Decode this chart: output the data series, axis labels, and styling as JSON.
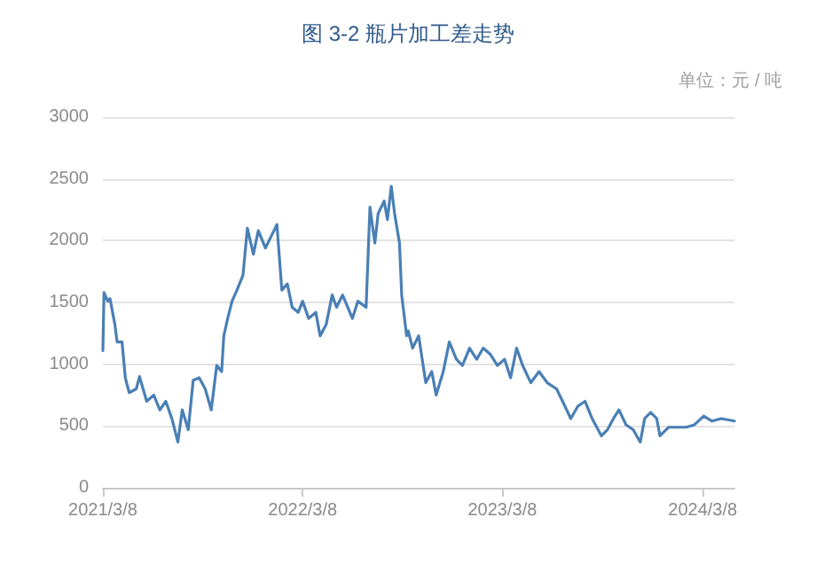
{
  "chart_data": {
    "type": "line",
    "title": "图 3-2 瓶片加工差走势",
    "ylabel": "单位：元 / 吨",
    "x": [
      "2021-03-08",
      "2021-03-10",
      "2021-03-17",
      "2021-03-21",
      "2021-03-30",
      "2021-04-03",
      "2021-04-12",
      "2021-04-18",
      "2021-04-25",
      "2021-05-08",
      "2021-05-14",
      "2021-05-27",
      "2021-06-09",
      "2021-06-20",
      "2021-07-01",
      "2021-07-12",
      "2021-07-23",
      "2021-07-31",
      "2021-08-11",
      "2021-08-20",
      "2021-08-31",
      "2021-09-11",
      "2021-09-22",
      "2021-10-02",
      "2021-10-11",
      "2021-10-15",
      "2021-10-22",
      "2021-10-30",
      "2021-11-08",
      "2021-11-19",
      "2021-11-27",
      "2021-12-08",
      "2021-12-17",
      "2021-12-30",
      "2022-01-09",
      "2022-01-20",
      "2022-01-29",
      "2022-02-08",
      "2022-02-17",
      "2022-02-28",
      "2022-03-08",
      "2022-03-19",
      "2022-04-01",
      "2022-04-09",
      "2022-04-20",
      "2022-05-01",
      "2022-05-09",
      "2022-05-20",
      "2022-06-07",
      "2022-06-17",
      "2022-07-02",
      "2022-07-09",
      "2022-07-18",
      "2022-07-24",
      "2022-08-04",
      "2022-08-10",
      "2022-08-17",
      "2022-08-23",
      "2022-09-01",
      "2022-09-05",
      "2022-09-14",
      "2022-09-17",
      "2022-09-25",
      "2022-10-06",
      "2022-10-19",
      "2022-10-30",
      "2022-11-07",
      "2022-11-20",
      "2022-12-01",
      "2022-12-14",
      "2022-12-25",
      "2023-01-07",
      "2023-01-20",
      "2023-02-01",
      "2023-02-14",
      "2023-02-27",
      "2023-03-12",
      "2023-03-23",
      "2023-04-03",
      "2023-04-14",
      "2023-04-29",
      "2023-05-14",
      "2023-05-29",
      "2023-06-15",
      "2023-06-26",
      "2023-07-11",
      "2023-07-24",
      "2023-08-06",
      "2023-08-19",
      "2023-09-05",
      "2023-09-16",
      "2023-09-27",
      "2023-10-07",
      "2023-10-20",
      "2023-11-02",
      "2023-11-15",
      "2023-11-23",
      "2023-12-04",
      "2023-12-15",
      "2023-12-21",
      "2024-01-06",
      "2024-01-23",
      "2024-02-07",
      "2024-02-22",
      "2024-03-10",
      "2024-03-25",
      "2024-04-11",
      "2024-05-05"
    ],
    "series": [
      {
        "color": "#4a7fb5",
        "values": [
          1110,
          1580,
          1510,
          1530,
          1320,
          1180,
          1180,
          890,
          770,
          800,
          900,
          700,
          750,
          630,
          700,
          560,
          370,
          630,
          470,
          870,
          890,
          800,
          630,
          990,
          940,
          1230,
          1370,
          1510,
          1600,
          1720,
          2100,
          1890,
          2080,
          1940,
          2030,
          2130,
          1600,
          1650,
          1460,
          1420,
          1510,
          1370,
          1420,
          1230,
          1320,
          1560,
          1460,
          1560,
          1370,
          1510,
          1460,
          2270,
          1980,
          2220,
          2320,
          2170,
          2440,
          2220,
          1980,
          1560,
          1230,
          1270,
          1130,
          1230,
          850,
          940,
          750,
          940,
          1180,
          1040,
          990,
          1130,
          1040,
          1130,
          1080,
          990,
          1040,
          890,
          1130,
          990,
          850,
          940,
          850,
          800,
          700,
          560,
          660,
          700,
          560,
          420,
          470,
          560,
          630,
          510,
          470,
          370,
          560,
          610,
          560,
          420,
          490,
          490,
          490,
          510,
          580,
          540,
          560,
          540
        ]
      }
    ],
    "xlim": [
      "2021-03-08",
      "2024-05-05"
    ],
    "xticks": [
      {
        "value": "2021-03-08",
        "label": "2021/3/8"
      },
      {
        "value": "2022-03-08",
        "label": "2022/3/8"
      },
      {
        "value": "2023-03-08",
        "label": "2023/3/8"
      },
      {
        "value": "2024-03-08",
        "label": "2024/3/8"
      }
    ],
    "ylim": [
      0,
      3000
    ],
    "yticks": [
      0,
      500,
      1000,
      1500,
      2000,
      2500,
      3000
    ],
    "grid": "y",
    "marker": "none",
    "line_style": "solid"
  }
}
